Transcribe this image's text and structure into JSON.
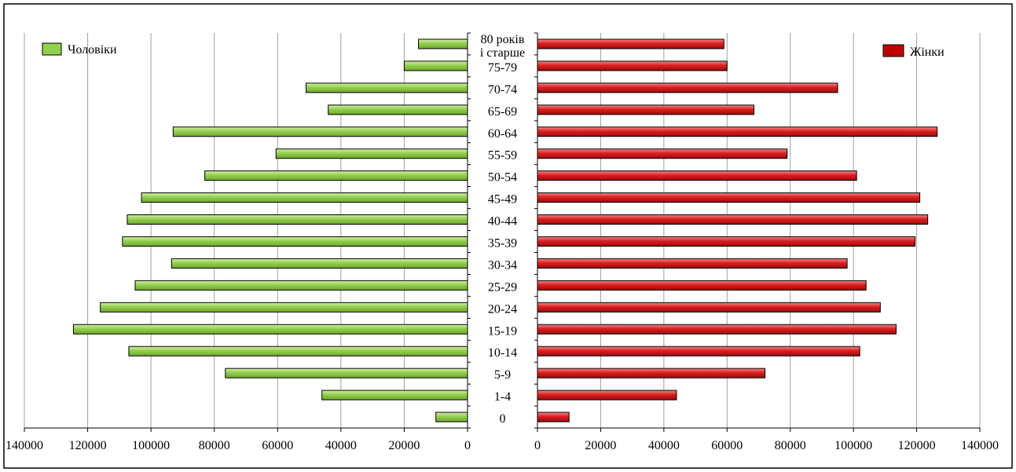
{
  "chart_data": {
    "type": "bar",
    "orientation": "horizontal",
    "subtype": "population-pyramid",
    "categories": [
      "0",
      "1-4",
      "5-9",
      "10-14",
      "15-19",
      "20-24",
      "25-29",
      "30-34",
      "35-39",
      "40-44",
      "45-49",
      "50-54",
      "55-59",
      "60-64",
      "65-69",
      "70-74",
      "75-79",
      "80 років і старше"
    ],
    "category_lines": [
      [
        "0"
      ],
      [
        "1-4"
      ],
      [
        "5-9"
      ],
      [
        "10-14"
      ],
      [
        "15-19"
      ],
      [
        "20-24"
      ],
      [
        "25-29"
      ],
      [
        "30-34"
      ],
      [
        "35-39"
      ],
      [
        "40-44"
      ],
      [
        "45-49"
      ],
      [
        "50-54"
      ],
      [
        "55-59"
      ],
      [
        "60-64"
      ],
      [
        "65-69"
      ],
      [
        "70-74"
      ],
      [
        "75-79"
      ],
      [
        "80 років",
        "і старше"
      ]
    ],
    "series": [
      {
        "name": "Чоловіки",
        "side": "left",
        "color": "#92d050",
        "values": [
          10000,
          46000,
          76500,
          107000,
          124500,
          116000,
          105000,
          93500,
          109000,
          107500,
          103000,
          83000,
          60500,
          93000,
          44000,
          51000,
          20000,
          15500
        ]
      },
      {
        "name": "Жінки",
        "side": "right",
        "color": "#d42020",
        "values": [
          10000,
          44000,
          72000,
          102000,
          113500,
          108500,
          104000,
          98000,
          119500,
          123500,
          121000,
          101000,
          79000,
          126500,
          68500,
          95000,
          60000,
          59000
        ]
      }
    ],
    "left_axis": {
      "range": [
        0,
        140000
      ],
      "reversed": true,
      "ticks": [
        "140000",
        "120000",
        "100000",
        "80000",
        "60000",
        "40000",
        "20000",
        "0"
      ]
    },
    "right_axis": {
      "range": [
        0,
        140000
      ],
      "ticks": [
        "0",
        "20000",
        "40000",
        "60000",
        "80000",
        "100000",
        "120000",
        "140000"
      ]
    },
    "grid": "vertical",
    "legend": [
      {
        "label": "Чоловіки",
        "placement": "top-left",
        "color": "#92d050"
      },
      {
        "label": "Жінки",
        "placement": "top-right",
        "color": "#c00000"
      }
    ]
  }
}
